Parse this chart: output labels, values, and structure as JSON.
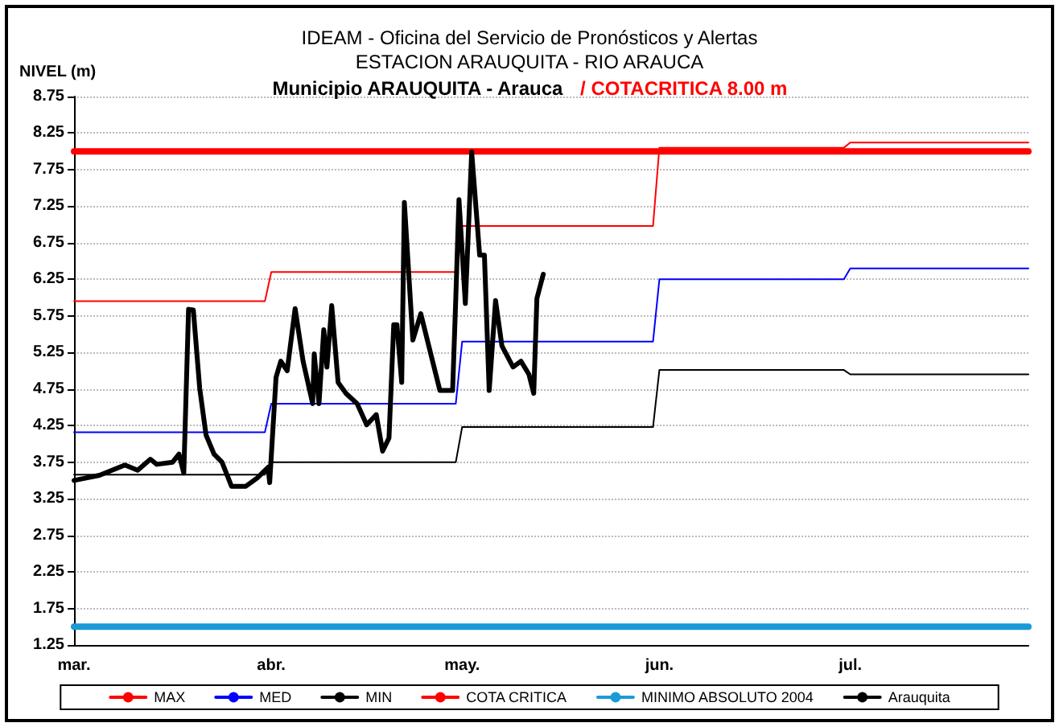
{
  "chart_data": {
    "type": "line",
    "title": "IDEAM - Oficina del Servicio de Pronósticos y Alertas",
    "subtitle": "ESTACION ARAUQUITA - RIO ARAUCA",
    "ylabel": "NIVEL (m)",
    "annotations": [
      "Municipio ARAUQUITA - Arauca",
      "/ COTACRITICA 8.00 m"
    ],
    "xlim": [
      "--03-01",
      "--07-29"
    ],
    "xticks": [
      {
        "value": "--03-01",
        "label": "mar."
      },
      {
        "value": "--04-01",
        "label": "abr."
      },
      {
        "value": "--05-01",
        "label": "may."
      },
      {
        "value": "--06-01",
        "label": "jun."
      },
      {
        "value": "--07-01",
        "label": "jul."
      }
    ],
    "ylim": [
      1.25,
      8.75
    ],
    "yticks": [
      1.25,
      1.75,
      2.25,
      2.75,
      3.25,
      3.75,
      4.25,
      4.75,
      5.25,
      5.75,
      6.25,
      6.75,
      7.25,
      7.75,
      8.25,
      8.75
    ],
    "grid": "y",
    "legend": "bottom",
    "marker": "none",
    "series": [
      {
        "name": "MAX",
        "color": "#ff0000",
        "x": [
          "--03-01",
          "--03-31",
          "--04-01",
          "--04-30",
          "--05-01",
          "--05-31",
          "--06-01",
          "--06-30",
          "--07-01",
          "--07-29"
        ],
        "values": [
          5.95,
          5.95,
          6.35,
          6.35,
          6.98,
          6.98,
          8.05,
          8.05,
          8.12,
          8.12
        ]
      },
      {
        "name": "MED",
        "color": "#0000ff",
        "x": [
          "--03-01",
          "--03-31",
          "--04-01",
          "--04-30",
          "--05-01",
          "--05-31",
          "--06-01",
          "--06-30",
          "--07-01",
          "--07-29"
        ],
        "values": [
          4.16,
          4.16,
          4.55,
          4.55,
          5.4,
          5.4,
          6.25,
          6.25,
          6.4,
          6.4
        ]
      },
      {
        "name": "MIN",
        "color": "#000000",
        "x": [
          "--03-01",
          "--03-31",
          "--04-01",
          "--04-30",
          "--05-01",
          "--05-31",
          "--06-01",
          "--06-30",
          "--07-01",
          "--07-29"
        ],
        "values": [
          3.58,
          3.58,
          3.75,
          3.75,
          4.23,
          4.23,
          5.01,
          5.01,
          4.95,
          4.95
        ]
      },
      {
        "name": "COTA CRITICA",
        "color": "#ff0000",
        "x": [
          "--03-01",
          "--07-29"
        ],
        "values": [
          8.0,
          8.0
        ]
      },
      {
        "name": "MINIMO ABSOLUTO 2004",
        "color": "#1a9bd6",
        "x": [
          "--03-01",
          "--07-29"
        ],
        "values": [
          1.5,
          1.5
        ]
      },
      {
        "name": "Arauquita",
        "color": "#000000",
        "x": [
          "--03-01",
          "--03-05",
          "--03-09",
          "--03-11",
          "--03-13",
          "--03-14",
          "--03-16T12:00",
          "--03-17T12:00",
          "--03-18T06:00",
          "--03-19",
          "--03-19T18:00",
          "--03-20T18:00",
          "--03-21T18:00",
          "--03-23",
          "--03-24T06:00",
          "--03-25T18:00",
          "--03-28",
          "--03-29T18:00",
          "--03-31T12:00",
          "--03-31T18:00",
          "--04-01T18:00",
          "--04-02T12:00",
          "--04-03T12:00",
          "--04-04T18:00",
          "--04-06",
          "--04-07T12:00",
          "--04-07T18:00",
          "--04-08T12:00",
          "--04-09T06:00",
          "--04-09T18:00",
          "--04-10T12:00",
          "--04-11T12:00",
          "--04-12T18:00",
          "--04-14T12:00",
          "--04-16",
          "--04-17T12:00",
          "--04-18T12:00",
          "--04-19T12:00",
          "--04-20T06:00",
          "--04-20T18:00",
          "--04-21T12:00",
          "--04-21T22:00",
          "--04-23T06:00",
          "--04-24T12:00",
          "--04-25T18:00",
          "--04-27T12:00",
          "--04-29T12:00",
          "--04-30",
          "--04-30T12:00",
          "--05-01T12:00",
          "--05-02T12:00",
          "--05-03T18:00",
          "--05-04T12:00",
          "--05-05T06:00",
          "--05-06T06:00",
          "--05-07T06:00",
          "--05-09",
          "--05-10T06:00",
          "--05-11T12:00",
          "--05-12T06:00",
          "--05-12T18:00",
          "--05-13T18:00"
        ],
        "values": [
          3.5,
          3.57,
          3.71,
          3.64,
          3.79,
          3.72,
          3.75,
          3.86,
          3.6,
          5.84,
          5.83,
          4.76,
          4.12,
          3.86,
          3.75,
          3.42,
          3.42,
          3.53,
          3.68,
          3.47,
          4.91,
          5.13,
          5.0,
          5.85,
          5.13,
          4.55,
          5.23,
          4.55,
          5.56,
          5.05,
          5.89,
          4.84,
          4.69,
          4.55,
          4.26,
          4.4,
          3.9,
          4.08,
          5.63,
          5.63,
          4.84,
          7.3,
          5.42,
          5.78,
          5.34,
          4.73,
          4.73,
          5.99,
          7.34,
          5.92,
          7.99,
          6.58,
          6.58,
          4.73,
          5.96,
          5.34,
          5.05,
          5.13,
          4.95,
          4.69,
          5.99,
          6.32
        ]
      }
    ]
  }
}
